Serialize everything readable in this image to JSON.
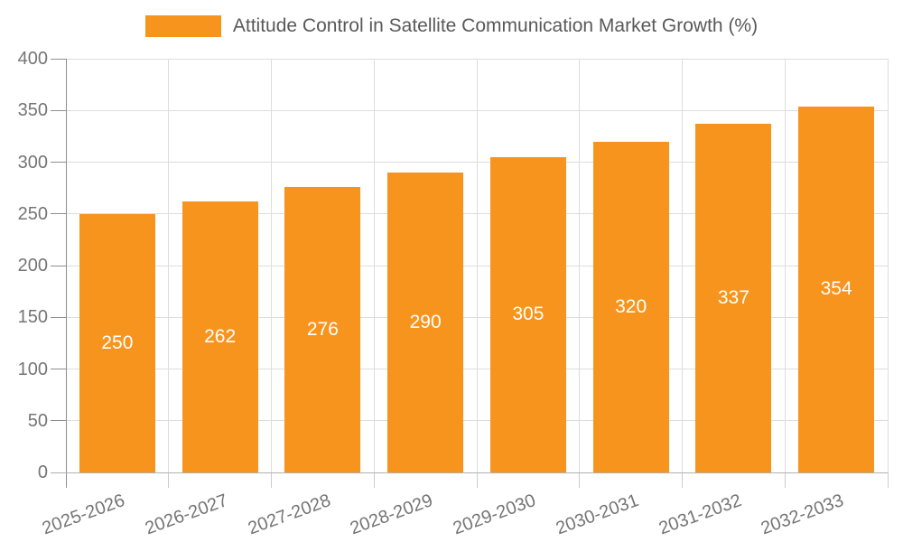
{
  "chart_data": {
    "type": "bar",
    "series_name": "Attitude Control in Satellite Communication Market Growth (%)",
    "categories": [
      "2025-2026",
      "2026-2027",
      "2027-2028",
      "2028-2029",
      "2029-2030",
      "2030-2031",
      "2031-2032",
      "2032-2033"
    ],
    "values": [
      250,
      262,
      276,
      290,
      305,
      320,
      337,
      354
    ],
    "value_labels": [
      "250",
      "262",
      "276",
      "290",
      "305",
      "320",
      "337",
      "354"
    ],
    "y_ticks": [
      0,
      50,
      100,
      150,
      200,
      250,
      300,
      350,
      400
    ],
    "ylim": [
      0,
      400
    ],
    "xlabel": "",
    "ylabel": "",
    "grid": true,
    "legend_position": "top",
    "colors": {
      "bar": "#F7941E",
      "grid_line": "#DDDDDD",
      "y_axis_line": "#8F8F8F",
      "x_axis_line": "#B0B0B0",
      "x_tick": "#CCCCCC",
      "tick_label": "#757575",
      "legend_text": "#595959",
      "bar_value_text": "#FFFFFF",
      "background": "#FFFFFF"
    }
  }
}
